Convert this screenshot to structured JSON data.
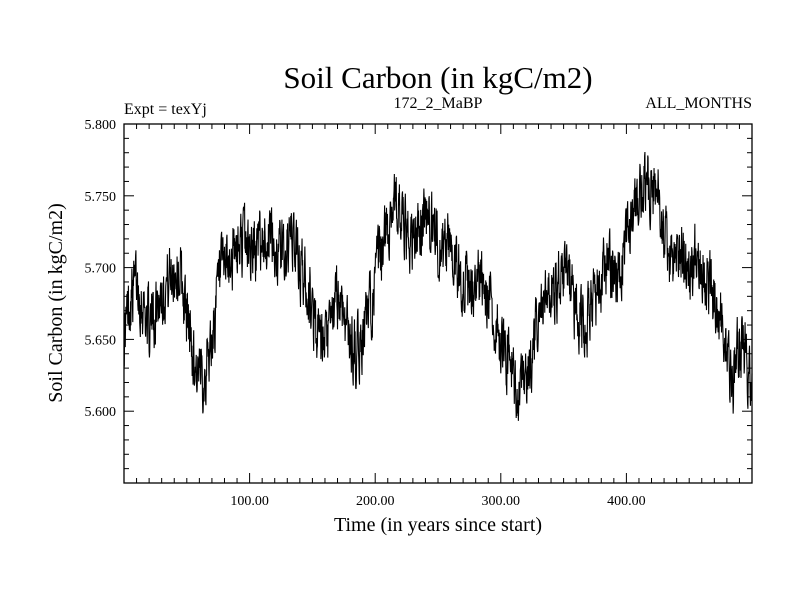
{
  "chart_data": {
    "type": "line",
    "title": "Soil Carbon (in kgC/m2)",
    "subtitle_left": "Expt = texYj",
    "subtitle_center": "172_2_MaBP",
    "subtitle_right": "ALL_MONTHS",
    "xlabel": "Time (in years since start)",
    "ylabel": "Soil Carbon (in kgC/m2)",
    "xlim": [
      0,
      500
    ],
    "ylim": [
      5.55,
      5.8
    ],
    "x_ticks": [
      100,
      200,
      300,
      400
    ],
    "x_tick_labels": [
      "100.00",
      "200.00",
      "300.00",
      "400.00"
    ],
    "y_ticks": [
      5.6,
      5.65,
      5.7,
      5.75,
      5.8
    ],
    "y_tick_labels": [
      "5.600",
      "5.650",
      "5.700",
      "5.750",
      "5.800"
    ],
    "grid": false,
    "legend": "none",
    "series": [
      {
        "line_color": "#000000",
        "envelope_note_values": "approximate centerline (x,y) of the high-frequency trace",
        "x": [
          0,
          5,
          10,
          15,
          20,
          25,
          30,
          35,
          40,
          45,
          50,
          55,
          60,
          65,
          70,
          75,
          80,
          85,
          90,
          95,
          100,
          105,
          110,
          115,
          120,
          125,
          130,
          135,
          140,
          145,
          150,
          155,
          160,
          165,
          170,
          175,
          180,
          185,
          190,
          195,
          200,
          205,
          210,
          215,
          220,
          225,
          230,
          235,
          240,
          245,
          250,
          255,
          260,
          265,
          270,
          275,
          280,
          285,
          290,
          295,
          300,
          305,
          310,
          315,
          320,
          325,
          330,
          335,
          340,
          345,
          350,
          355,
          360,
          365,
          370,
          375,
          380,
          385,
          390,
          395,
          400,
          405,
          410,
          415,
          420,
          425,
          430,
          435,
          440,
          445,
          450,
          455,
          460,
          465,
          470,
          475,
          480,
          485,
          490,
          495,
          500
        ],
        "y": [
          5.65,
          5.68,
          5.69,
          5.675,
          5.66,
          5.67,
          5.685,
          5.69,
          5.7,
          5.695,
          5.665,
          5.64,
          5.62,
          5.63,
          5.65,
          5.685,
          5.7,
          5.705,
          5.71,
          5.72,
          5.715,
          5.71,
          5.72,
          5.725,
          5.715,
          5.71,
          5.715,
          5.72,
          5.7,
          5.69,
          5.67,
          5.65,
          5.64,
          5.66,
          5.68,
          5.67,
          5.65,
          5.64,
          5.65,
          5.67,
          5.69,
          5.71,
          5.73,
          5.75,
          5.735,
          5.72,
          5.715,
          5.725,
          5.74,
          5.73,
          5.72,
          5.71,
          5.72,
          5.705,
          5.69,
          5.68,
          5.685,
          5.69,
          5.675,
          5.66,
          5.65,
          5.64,
          5.625,
          5.61,
          5.615,
          5.64,
          5.66,
          5.675,
          5.68,
          5.69,
          5.7,
          5.69,
          5.67,
          5.66,
          5.665,
          5.68,
          5.69,
          5.7,
          5.69,
          5.7,
          5.72,
          5.735,
          5.745,
          5.755,
          5.76,
          5.75,
          5.72,
          5.7,
          5.705,
          5.71,
          5.7,
          5.71,
          5.705,
          5.69,
          5.68,
          5.665,
          5.64,
          5.62,
          5.65,
          5.64,
          5.61
        ]
      }
    ]
  }
}
